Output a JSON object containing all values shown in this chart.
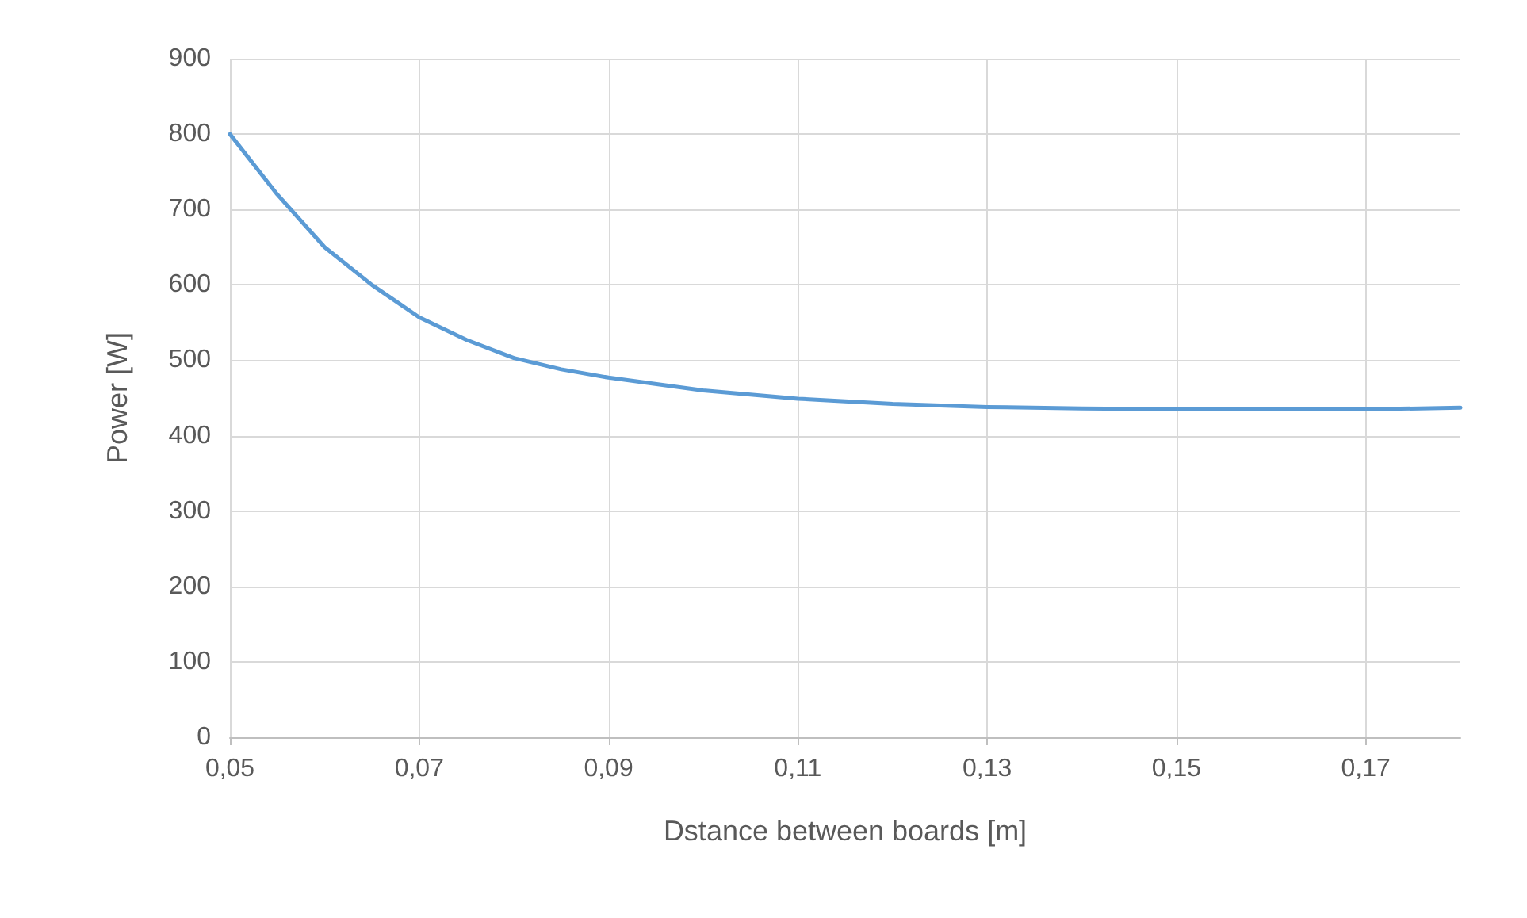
{
  "chart_data": {
    "type": "line",
    "xlabel": "Dstance between boards [m]",
    "ylabel": "Power [W]",
    "x": [
      0.05,
      0.055,
      0.06,
      0.065,
      0.07,
      0.075,
      0.08,
      0.085,
      0.09,
      0.1,
      0.11,
      0.12,
      0.13,
      0.14,
      0.15,
      0.16,
      0.17,
      0.18
    ],
    "series": [
      {
        "color": "#5b9bd5",
        "values": [
          800,
          720,
          650,
          600,
          557,
          527,
          503,
          488,
          477,
          460,
          449,
          442,
          438,
          436,
          435,
          435,
          435,
          437
        ]
      }
    ],
    "xlim": [
      0.05,
      0.18
    ],
    "xticks": [
      {
        "value": 0.05,
        "label": "0,05"
      },
      {
        "value": 0.07,
        "label": "0,07"
      },
      {
        "value": 0.09,
        "label": "0,09"
      },
      {
        "value": 0.11,
        "label": "0,11"
      },
      {
        "value": 0.13,
        "label": "0,13"
      },
      {
        "value": 0.15,
        "label": "0,15"
      },
      {
        "value": 0.17,
        "label": "0,17"
      }
    ],
    "ylim": [
      0,
      900
    ],
    "yticks": [
      0,
      100,
      200,
      300,
      400,
      500,
      600,
      700,
      800,
      900
    ],
    "grid": true,
    "marker": "none",
    "line_style": "solid"
  }
}
